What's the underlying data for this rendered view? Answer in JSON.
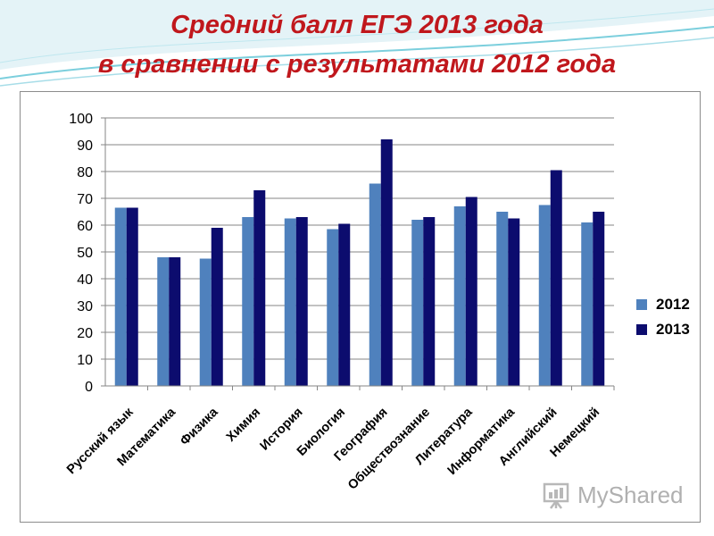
{
  "title": {
    "line1": "Средний балл ЕГЭ 2013 года",
    "line2": "в сравнении с результатами 2012 года"
  },
  "colors": {
    "title": "#c0171c",
    "series_2012": "#4f81bd",
    "series_2013": "#0c0c6e",
    "grid": "#868686",
    "wave": "#6fc6d6"
  },
  "watermark": {
    "text": "MyShared",
    "icon": "myshared-logo-icon"
  },
  "chart_data": {
    "type": "bar",
    "categories": [
      "Русский язык",
      "Математика",
      "Физика",
      "Химия",
      "История",
      "Биология",
      "География",
      "Обществознание",
      "Литература",
      "Информатика",
      "Английский",
      "Немецкий"
    ],
    "series": [
      {
        "name": "2012",
        "values": [
          66.5,
          48,
          47.5,
          63,
          62.5,
          58.5,
          75.5,
          62,
          67,
          65,
          67.5,
          61
        ]
      },
      {
        "name": "2013",
        "values": [
          66.5,
          48,
          59,
          73,
          63,
          60.5,
          92,
          63,
          70.5,
          62.5,
          80.5,
          65
        ]
      }
    ],
    "ylim": [
      0,
      100
    ],
    "yticks": [
      "0",
      "10",
      "20",
      "30",
      "40",
      "50",
      "60",
      "70",
      "80",
      "90",
      "100"
    ],
    "grid": true,
    "legend": "right"
  }
}
